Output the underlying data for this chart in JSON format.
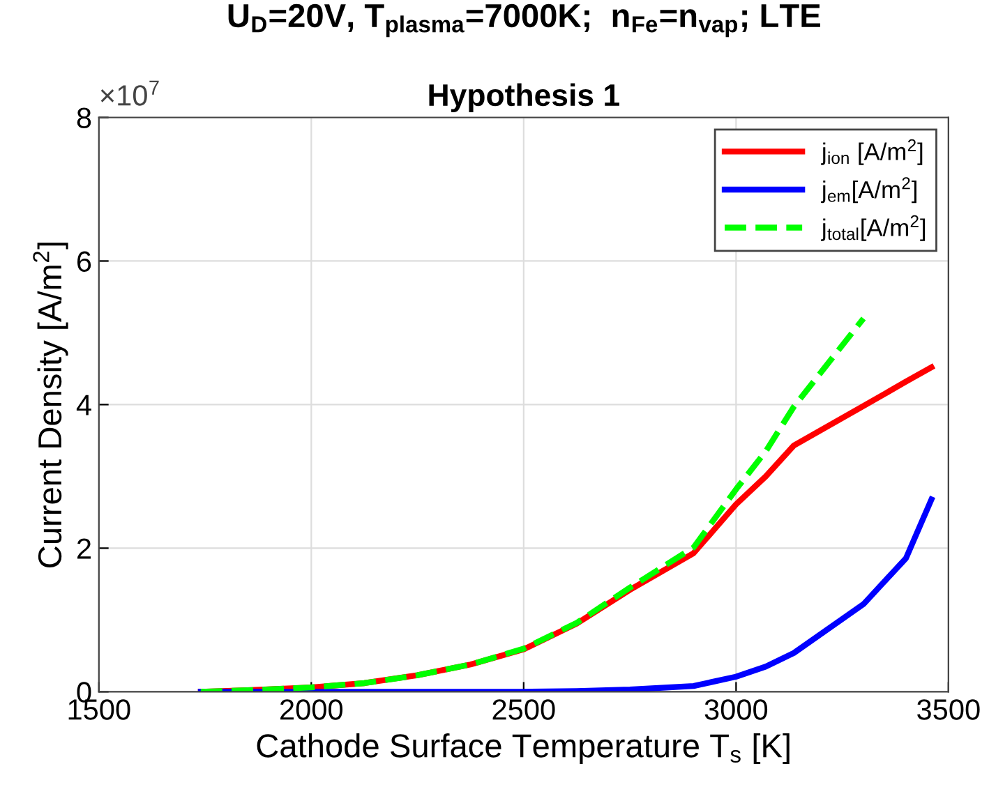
{
  "chart_data": {
    "type": "line",
    "title": "U$_{D}$=20V, T$_{plasma}$=7000K;  n$_{Fe}$=n$_{vap}$; LTE",
    "subtitle": "Hypothesis 1",
    "xlabel": "Cathode Surface Temperature T$_{s}$ [K]",
    "ylabel": "Current Density [A/m$^{2}$]",
    "annotations": [
      "×10$^{7}$"
    ],
    "x": [
      1740,
      1850,
      2000,
      2125,
      2250,
      2375,
      2500,
      2625,
      2750,
      2900,
      3000,
      3070,
      3136,
      3300,
      3400,
      3460
    ],
    "series": [
      {
        "name": "j$_{ion}$ [A/m$^{2}$]",
        "color": "#ff0000",
        "line_style": "solid",
        "values": [
          0,
          0.02,
          0.06,
          0.12,
          0.23,
          0.38,
          0.59,
          0.95,
          1.42,
          1.93,
          2.61,
          3.0,
          3.43,
          3.98,
          4.32,
          4.52
        ]
      },
      {
        "name": "j$_{em}$[A/m$^{2}$]",
        "color": "#0000ff",
        "line_style": "solid",
        "values": [
          0,
          0,
          0,
          0,
          0,
          0,
          0,
          0.01,
          0.03,
          0.08,
          0.21,
          0.35,
          0.54,
          1.22,
          1.86,
          2.68
        ]
      },
      {
        "name": "j$_{total}$[A/m$^{2}$]",
        "color": "#00ff00",
        "line_style": "dashed",
        "values": [
          0,
          0.02,
          0.06,
          0.12,
          0.23,
          0.38,
          0.6,
          0.96,
          1.45,
          2.01,
          2.82,
          3.35,
          3.97,
          5.2,
          null,
          null
        ]
      }
    ],
    "xlim": [
      1500,
      3500
    ],
    "xticks": [
      1500,
      2000,
      2500,
      3000,
      3500
    ],
    "ylim": [
      0,
      8
    ],
    "yticks": [
      0,
      2,
      4,
      6,
      8
    ],
    "grid": true,
    "legend": "top right"
  }
}
